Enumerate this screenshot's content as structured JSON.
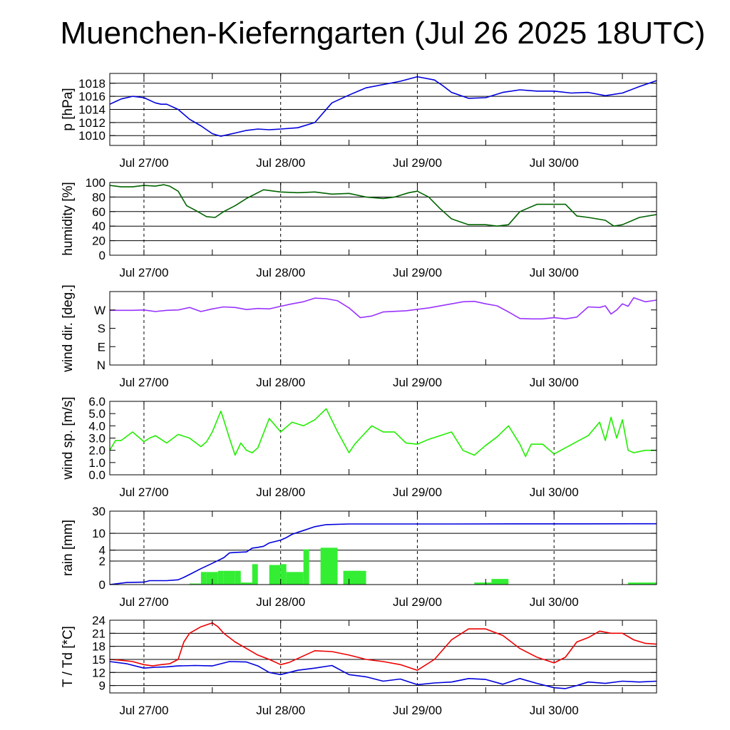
{
  "title": "Muenchen-Kieferngarten (Jul 26 2025 18UTC)",
  "chart_data": [
    {
      "type": "line",
      "ylabel": "p [hPa]",
      "x_tick_labels": [
        "Jul 27/00",
        "Jul 28/00",
        "Jul 29/00",
        "Jul 30/00"
      ],
      "x_unit": "hours since Jul 26 18UTC",
      "xlim": [
        0,
        96
      ],
      "ylim": [
        1008.5,
        1019.5
      ],
      "y_ticks": [
        1010,
        1012,
        1014,
        1016,
        1018
      ],
      "y_tick_labels": [
        "1010",
        "1012",
        "1014",
        "1016",
        "1018"
      ],
      "grid": true,
      "series": [
        {
          "color": "#0000dd",
          "x": [
            0,
            1,
            2,
            3,
            4,
            6,
            8,
            9,
            10,
            12,
            14,
            16,
            18,
            19.5,
            20,
            22,
            24,
            26,
            28,
            30,
            33,
            36,
            39,
            42,
            45,
            48,
            51,
            54,
            57,
            58.5,
            60,
            63,
            66,
            69,
            72,
            75,
            78,
            81,
            84,
            87,
            90,
            93,
            96
          ],
          "y": [
            1014.8,
            1015.2,
            1015.6,
            1015.8,
            1016.0,
            1015.8,
            1015.0,
            1014.8,
            1014.8,
            1014.0,
            1012.5,
            1011.5,
            1010.3,
            1009.9,
            1010.0,
            1010.4,
            1010.8,
            1011.0,
            1010.9,
            1011.0,
            1011.2,
            1012.0,
            1015.0,
            1016.2,
            1017.3,
            1017.8,
            1018.3,
            1019.0,
            1018.5,
            1017.6,
            1016.6,
            1015.7,
            1015.8,
            1016.6,
            1017.0,
            1016.8,
            1016.8,
            1016.5,
            1016.6,
            1016.1,
            1016.5,
            1017.5,
            1018.4
          ]
        }
      ]
    },
    {
      "type": "line",
      "ylabel": "humidity [%]",
      "x_tick_labels": [
        "Jul 27/00",
        "Jul 28/00",
        "Jul 29/00",
        "Jul 30/00"
      ],
      "xlim": [
        0,
        96
      ],
      "ylim": [
        0,
        100
      ],
      "y_ticks": [
        0,
        20,
        40,
        60,
        80,
        100
      ],
      "y_tick_labels": [
        "0",
        "20",
        "40",
        "60",
        "80",
        "100"
      ],
      "grid": true,
      "series": [
        {
          "color": "#006400",
          "x": [
            0,
            2,
            4,
            6,
            8,
            9.5,
            10.5,
            12,
            13.5,
            15,
            17,
            18.5,
            20,
            22,
            24,
            27,
            30,
            33,
            36,
            39,
            42,
            45,
            48,
            50,
            52.5,
            54,
            56,
            58,
            60,
            63,
            66,
            68,
            70,
            72,
            75,
            78,
            80,
            82,
            84,
            87,
            88.5,
            90,
            93,
            96
          ],
          "y": [
            96,
            94,
            94,
            96,
            95,
            97,
            95,
            88,
            68,
            62,
            53,
            52,
            60,
            68,
            78,
            90,
            87,
            86,
            87,
            84,
            85,
            80,
            78,
            80,
            86,
            88,
            80,
            64,
            50,
            42,
            42,
            40,
            42,
            60,
            70,
            70,
            70,
            54,
            52,
            48,
            40,
            42,
            52,
            56
          ]
        }
      ]
    },
    {
      "type": "line",
      "ylabel": "wind dir. [deg.]",
      "x_tick_labels": [
        "Jul 27/00",
        "Jul 28/00",
        "Jul 29/00",
        "Jul 30/00"
      ],
      "xlim": [
        0,
        96
      ],
      "ylim": [
        0,
        360
      ],
      "y_ticks": [
        0,
        90,
        180,
        270
      ],
      "y_tick_labels": [
        "N",
        "E",
        "S",
        "W"
      ],
      "grid": false,
      "series": [
        {
          "color": "#9933ff",
          "x": [
            0,
            2,
            4,
            6,
            8,
            10,
            12,
            14,
            16,
            18,
            20,
            22,
            24,
            26,
            28,
            30,
            32,
            34,
            36,
            38,
            40,
            42,
            44,
            46,
            48,
            52,
            56,
            60,
            62,
            64,
            66,
            68,
            70,
            72,
            74,
            76,
            78,
            80,
            82,
            84,
            86,
            87,
            88,
            89,
            90,
            91,
            92,
            94,
            96
          ],
          "y": [
            268,
            268,
            268,
            270,
            262,
            268,
            270,
            282,
            262,
            275,
            285,
            282,
            272,
            277,
            275,
            288,
            300,
            310,
            328,
            325,
            315,
            280,
            232,
            240,
            260,
            266,
            280,
            300,
            310,
            312,
            300,
            290,
            260,
            228,
            226,
            226,
            232,
            226,
            235,
            285,
            282,
            290,
            250,
            270,
            300,
            288,
            330,
            310,
            318
          ]
        }
      ]
    },
    {
      "type": "line",
      "ylabel": "wind sp. [m/s]",
      "x_tick_labels": [
        "Jul 27/00",
        "Jul 28/00",
        "Jul 29/00",
        "Jul 30/00"
      ],
      "xlim": [
        0,
        96
      ],
      "ylim": [
        0,
        6
      ],
      "y_ticks": [
        0,
        1,
        2,
        3,
        4,
        5,
        6
      ],
      "y_tick_labels": [
        "0.0",
        "1.0",
        "2.0",
        "3.0",
        "4.0",
        "5.0",
        "6.0"
      ],
      "grid": false,
      "series": [
        {
          "color": "#22ee00",
          "x": [
            0,
            1,
            2,
            4,
            6,
            7,
            8,
            10,
            12,
            14,
            16,
            17,
            18,
            19.5,
            20,
            21,
            22,
            23,
            24,
            25,
            26,
            28,
            30,
            32,
            34,
            36,
            38,
            40,
            42,
            43,
            44,
            46,
            48,
            50,
            52,
            54,
            56,
            58,
            60,
            62,
            64,
            66,
            68,
            70,
            72,
            73,
            74,
            76,
            78,
            80,
            82,
            84,
            86,
            87,
            88,
            89,
            90,
            91,
            92,
            94,
            96
          ],
          "y": [
            2.0,
            2.8,
            2.8,
            3.5,
            2.7,
            3.0,
            3.2,
            2.6,
            3.3,
            3.0,
            2.3,
            2.7,
            3.5,
            5.2,
            4.5,
            3.0,
            1.6,
            2.6,
            2.0,
            1.8,
            2.2,
            4.6,
            3.5,
            4.3,
            4.0,
            4.5,
            5.4,
            3.5,
            1.8,
            2.5,
            3.0,
            4.0,
            3.5,
            3.5,
            2.6,
            2.5,
            2.9,
            3.2,
            3.5,
            2.0,
            1.6,
            2.4,
            3.1,
            4.0,
            2.5,
            1.5,
            2.5,
            2.5,
            1.7,
            2.2,
            2.7,
            3.2,
            4.3,
            2.8,
            4.7,
            3.0,
            4.5,
            2.0,
            1.8,
            2.0,
            2.0
          ]
        }
      ]
    },
    {
      "type": "bar",
      "ylabel": "rain [mm]",
      "x_tick_labels": [
        "Jul 27/00",
        "Jul 28/00",
        "Jul 29/00",
        "Jul 30/00"
      ],
      "xlim": [
        0,
        96
      ],
      "ylim": [
        0,
        30
      ],
      "y_scale": "log1p",
      "y_ticks": [
        0,
        2,
        4,
        10,
        30
      ],
      "y_tick_labels": [
        "0",
        "2",
        "4",
        "10",
        "30"
      ],
      "grid": true,
      "bar_color": "#33ee33",
      "bars": {
        "x": [
          14,
          16,
          17,
          19,
          20,
          22,
          23,
          25,
          28,
          30,
          31,
          34,
          37,
          41,
          42,
          44,
          64,
          67,
          91
        ],
        "width": [
          2,
          1,
          2,
          1,
          2,
          1,
          2,
          1,
          2,
          1,
          3,
          1,
          3,
          3,
          3,
          2,
          3,
          3,
          5
        ],
        "values": [
          0.05,
          0.8,
          0.8,
          0.9,
          0.9,
          0.9,
          0.1,
          1.6,
          1.5,
          1.6,
          0.8,
          4.2,
          4.6,
          0.9,
          0.9,
          0.0,
          0.1,
          0.3,
          0.1
        ]
      },
      "cumulative": {
        "color": "#0000dd",
        "x": [
          0,
          3,
          6,
          7,
          10,
          12,
          13,
          14,
          16,
          18,
          20,
          21,
          22,
          24,
          25,
          26,
          27,
          28,
          30,
          31,
          32,
          33,
          34,
          36,
          38,
          42,
          48,
          60,
          72,
          84,
          96
        ],
        "y": [
          0,
          0.1,
          0.12,
          0.2,
          0.2,
          0.25,
          0.4,
          0.6,
          1.1,
          1.7,
          2.5,
          3.4,
          3.5,
          3.6,
          4.5,
          4.7,
          5.0,
          6.0,
          7.0,
          8.0,
          9.5,
          10.5,
          11.5,
          14.0,
          15.5,
          16.0,
          16.0,
          16.0,
          16.1,
          16.1,
          16.2
        ]
      }
    },
    {
      "type": "line",
      "ylabel": "T / Td [*C]",
      "x_tick_labels": [
        "Jul 27/00",
        "Jul 28/00",
        "Jul 29/00",
        "Jul 30/00"
      ],
      "xlim": [
        0,
        96
      ],
      "ylim": [
        7.3,
        24
      ],
      "y_ticks": [
        9,
        12,
        15,
        18,
        21,
        24
      ],
      "y_tick_labels": [
        "9",
        "12",
        "15",
        "18",
        "21",
        "24"
      ],
      "grid": true,
      "series": [
        {
          "name": "T",
          "color": "#ee0000",
          "x": [
            0,
            2,
            4,
            6,
            7.5,
            9,
            10.5,
            12,
            13,
            14,
            16,
            18,
            19,
            20,
            22,
            24,
            26,
            28,
            30,
            31.5,
            33,
            36,
            39,
            42,
            45,
            48,
            51,
            54,
            57,
            60,
            63,
            66,
            69,
            72,
            75,
            78,
            80,
            82,
            84,
            86,
            88,
            90,
            92,
            94,
            96
          ],
          "y": [
            15,
            14.8,
            14.5,
            13.8,
            13.5,
            13.8,
            14,
            15,
            19,
            21,
            22.5,
            23.4,
            22.5,
            21,
            19,
            17.5,
            16,
            15,
            13.8,
            14.3,
            15.2,
            17.0,
            16.8,
            16.0,
            15.0,
            14.5,
            13.8,
            12.5,
            15.0,
            19.5,
            22.0,
            22.0,
            20.5,
            17.5,
            15.5,
            14.2,
            15.5,
            19,
            20,
            21.5,
            21,
            21,
            19.5,
            18.7,
            18.5
          ]
        },
        {
          "name": "Td",
          "color": "#0000dd",
          "x": [
            0,
            3,
            6,
            8,
            10,
            12,
            15,
            18,
            21,
            24,
            26,
            28,
            30,
            33,
            36,
            39,
            42,
            45,
            48,
            51,
            54,
            57,
            60,
            63,
            66,
            69,
            72,
            75,
            78,
            80,
            82,
            84,
            87,
            90,
            93,
            96
          ],
          "y": [
            14.5,
            14,
            13,
            13.2,
            13.3,
            13.5,
            13.6,
            13.5,
            14.5,
            14.4,
            13.5,
            12,
            11.5,
            12.5,
            13.0,
            13.6,
            11.5,
            11.0,
            10.0,
            10.5,
            9.2,
            9.6,
            9.8,
            10.6,
            10.4,
            9.3,
            10.6,
            9.5,
            8.5,
            8.3,
            9.0,
            9.8,
            9.5,
            10.0,
            9.8,
            10.0
          ]
        }
      ]
    }
  ]
}
